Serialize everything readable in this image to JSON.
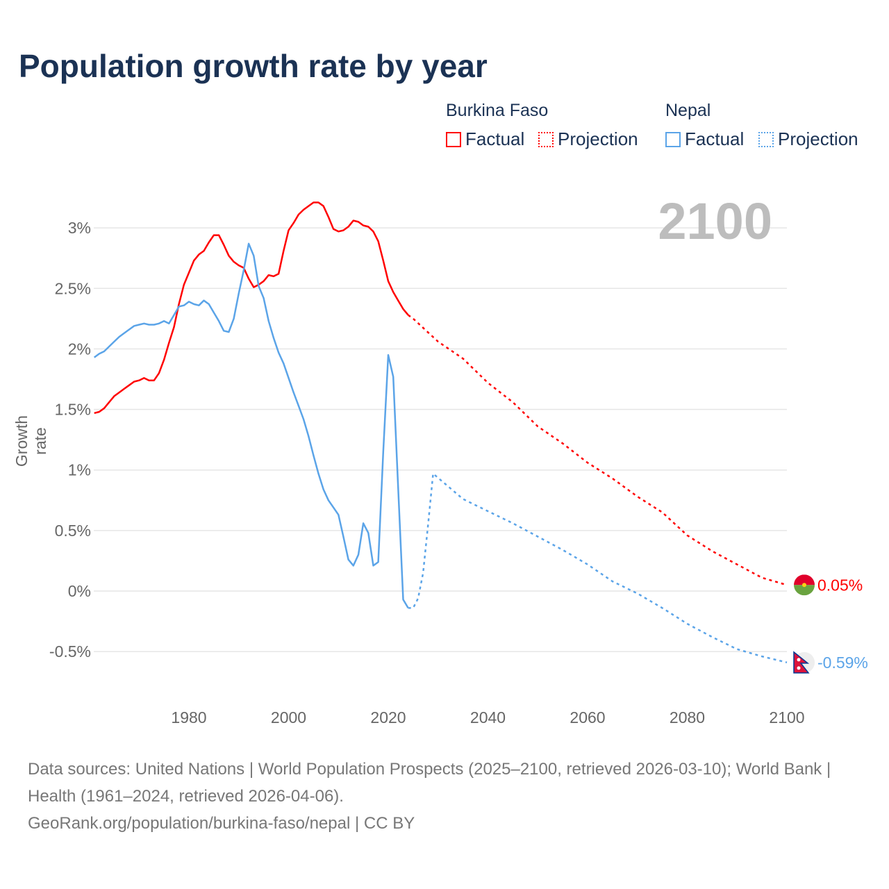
{
  "title": "Population growth rate by year",
  "current_year": "2100",
  "legend": {
    "groups": [
      {
        "name": "Burkina Faso",
        "factual": "Factual",
        "projection": "Projection",
        "color": "#ff0000"
      },
      {
        "name": "Nepal",
        "factual": "Factual",
        "projection": "Projection",
        "color": "#5ba4e8"
      }
    ]
  },
  "end_labels": {
    "burkina": "0.05%",
    "nepal": "-0.59%"
  },
  "footer": {
    "line1": "Data sources: United Nations | World Population Prospects (2025–2100, retrieved 2026-03-10); World Bank | Health (1961–2024, retrieved 2026-04-06).",
    "line2": "GeoRank.org/population/burkina-faso/nepal | CC BY"
  },
  "chart_data": {
    "type": "line",
    "title": "Population growth rate by year",
    "xlabel": "",
    "ylabel": "Growth rate",
    "xlim": [
      1961,
      2100
    ],
    "ylim": [
      -0.9,
      3.3
    ],
    "xticks": [
      1980,
      2000,
      2020,
      2040,
      2060,
      2080,
      2100
    ],
    "yticks": [
      -0.5,
      0,
      0.5,
      1,
      1.5,
      2,
      2.5,
      3
    ],
    "ytick_labels": [
      "-0.5%",
      "0%",
      "0.5%",
      "1%",
      "1.5%",
      "2%",
      "2.5%",
      "3%"
    ],
    "grid": true,
    "series": [
      {
        "name": "Burkina Faso Factual",
        "color": "#ff0000",
        "style": "solid",
        "x": [
          1961,
          1962,
          1963,
          1964,
          1965,
          1966,
          1967,
          1968,
          1969,
          1970,
          1971,
          1972,
          1973,
          1974,
          1975,
          1976,
          1977,
          1978,
          1979,
          1980,
          1981,
          1982,
          1983,
          1984,
          1985,
          1986,
          1987,
          1988,
          1989,
          1990,
          1991,
          1992,
          1993,
          1994,
          1995,
          1996,
          1997,
          1998,
          1999,
          2000,
          2001,
          2002,
          2003,
          2004,
          2005,
          2006,
          2007,
          2008,
          2009,
          2010,
          2011,
          2012,
          2013,
          2014,
          2015,
          2016,
          2017,
          2018,
          2019,
          2020,
          2021,
          2022,
          2023,
          2024
        ],
        "y": [
          1.47,
          1.48,
          1.51,
          1.56,
          1.61,
          1.64,
          1.67,
          1.7,
          1.73,
          1.74,
          1.76,
          1.74,
          1.74,
          1.8,
          1.91,
          2.05,
          2.18,
          2.37,
          2.53,
          2.63,
          2.73,
          2.78,
          2.81,
          2.88,
          2.94,
          2.94,
          2.86,
          2.77,
          2.72,
          2.69,
          2.67,
          2.58,
          2.51,
          2.53,
          2.56,
          2.61,
          2.6,
          2.62,
          2.81,
          2.98,
          3.04,
          3.11,
          3.15,
          3.18,
          3.21,
          3.21,
          3.18,
          3.09,
          2.99,
          2.97,
          2.98,
          3.01,
          3.06,
          3.05,
          3.02,
          3.01,
          2.97,
          2.89,
          2.73,
          2.56,
          2.47,
          2.4,
          2.33,
          2.28
        ]
      },
      {
        "name": "Burkina Faso Projection",
        "color": "#ff0000",
        "style": "dotted",
        "x": [
          2024,
          2025,
          2030,
          2035,
          2040,
          2045,
          2050,
          2055,
          2060,
          2065,
          2070,
          2075,
          2080,
          2085,
          2090,
          2095,
          2100
        ],
        "y": [
          2.28,
          2.25,
          2.06,
          1.92,
          1.72,
          1.56,
          1.36,
          1.22,
          1.06,
          0.93,
          0.78,
          0.65,
          0.46,
          0.33,
          0.22,
          0.11,
          0.05
        ]
      },
      {
        "name": "Nepal Factual",
        "color": "#5ba4e8",
        "style": "solid",
        "x": [
          1961,
          1962,
          1963,
          1964,
          1965,
          1966,
          1967,
          1968,
          1969,
          1970,
          1971,
          1972,
          1973,
          1974,
          1975,
          1976,
          1977,
          1978,
          1979,
          1980,
          1981,
          1982,
          1983,
          1984,
          1985,
          1986,
          1987,
          1988,
          1989,
          1990,
          1991,
          1992,
          1993,
          1994,
          1995,
          1996,
          1997,
          1998,
          1999,
          2000,
          2001,
          2002,
          2003,
          2004,
          2005,
          2006,
          2007,
          2008,
          2009,
          2010,
          2011,
          2012,
          2013,
          2014,
          2015,
          2016,
          2017,
          2018,
          2019,
          2020,
          2021,
          2022,
          2023,
          2024
        ],
        "y": [
          1.93,
          1.96,
          1.98,
          2.02,
          2.06,
          2.1,
          2.13,
          2.16,
          2.19,
          2.2,
          2.21,
          2.2,
          2.2,
          2.21,
          2.23,
          2.21,
          2.28,
          2.35,
          2.36,
          2.39,
          2.37,
          2.36,
          2.4,
          2.37,
          2.3,
          2.23,
          2.15,
          2.14,
          2.25,
          2.46,
          2.65,
          2.87,
          2.77,
          2.52,
          2.42,
          2.23,
          2.09,
          1.97,
          1.88,
          1.76,
          1.64,
          1.53,
          1.42,
          1.28,
          1.12,
          0.97,
          0.84,
          0.75,
          0.69,
          0.63,
          0.45,
          0.26,
          0.21,
          0.3,
          0.56,
          0.48,
          0.21,
          0.24,
          1.15,
          1.95,
          1.77,
          0.85,
          -0.07,
          -0.14
        ]
      },
      {
        "name": "Nepal Projection",
        "color": "#5ba4e8",
        "style": "dotted",
        "x": [
          2024,
          2025,
          2026,
          2027,
          2028,
          2029,
          2035,
          2040,
          2045,
          2050,
          2055,
          2060,
          2065,
          2070,
          2075,
          2080,
          2085,
          2090,
          2095,
          2100
        ],
        "y": [
          -0.14,
          -0.14,
          -0.06,
          0.15,
          0.55,
          0.97,
          0.76,
          0.66,
          0.56,
          0.45,
          0.34,
          0.22,
          0.08,
          -0.02,
          -0.14,
          -0.27,
          -0.38,
          -0.48,
          -0.54,
          -0.59
        ]
      }
    ]
  }
}
